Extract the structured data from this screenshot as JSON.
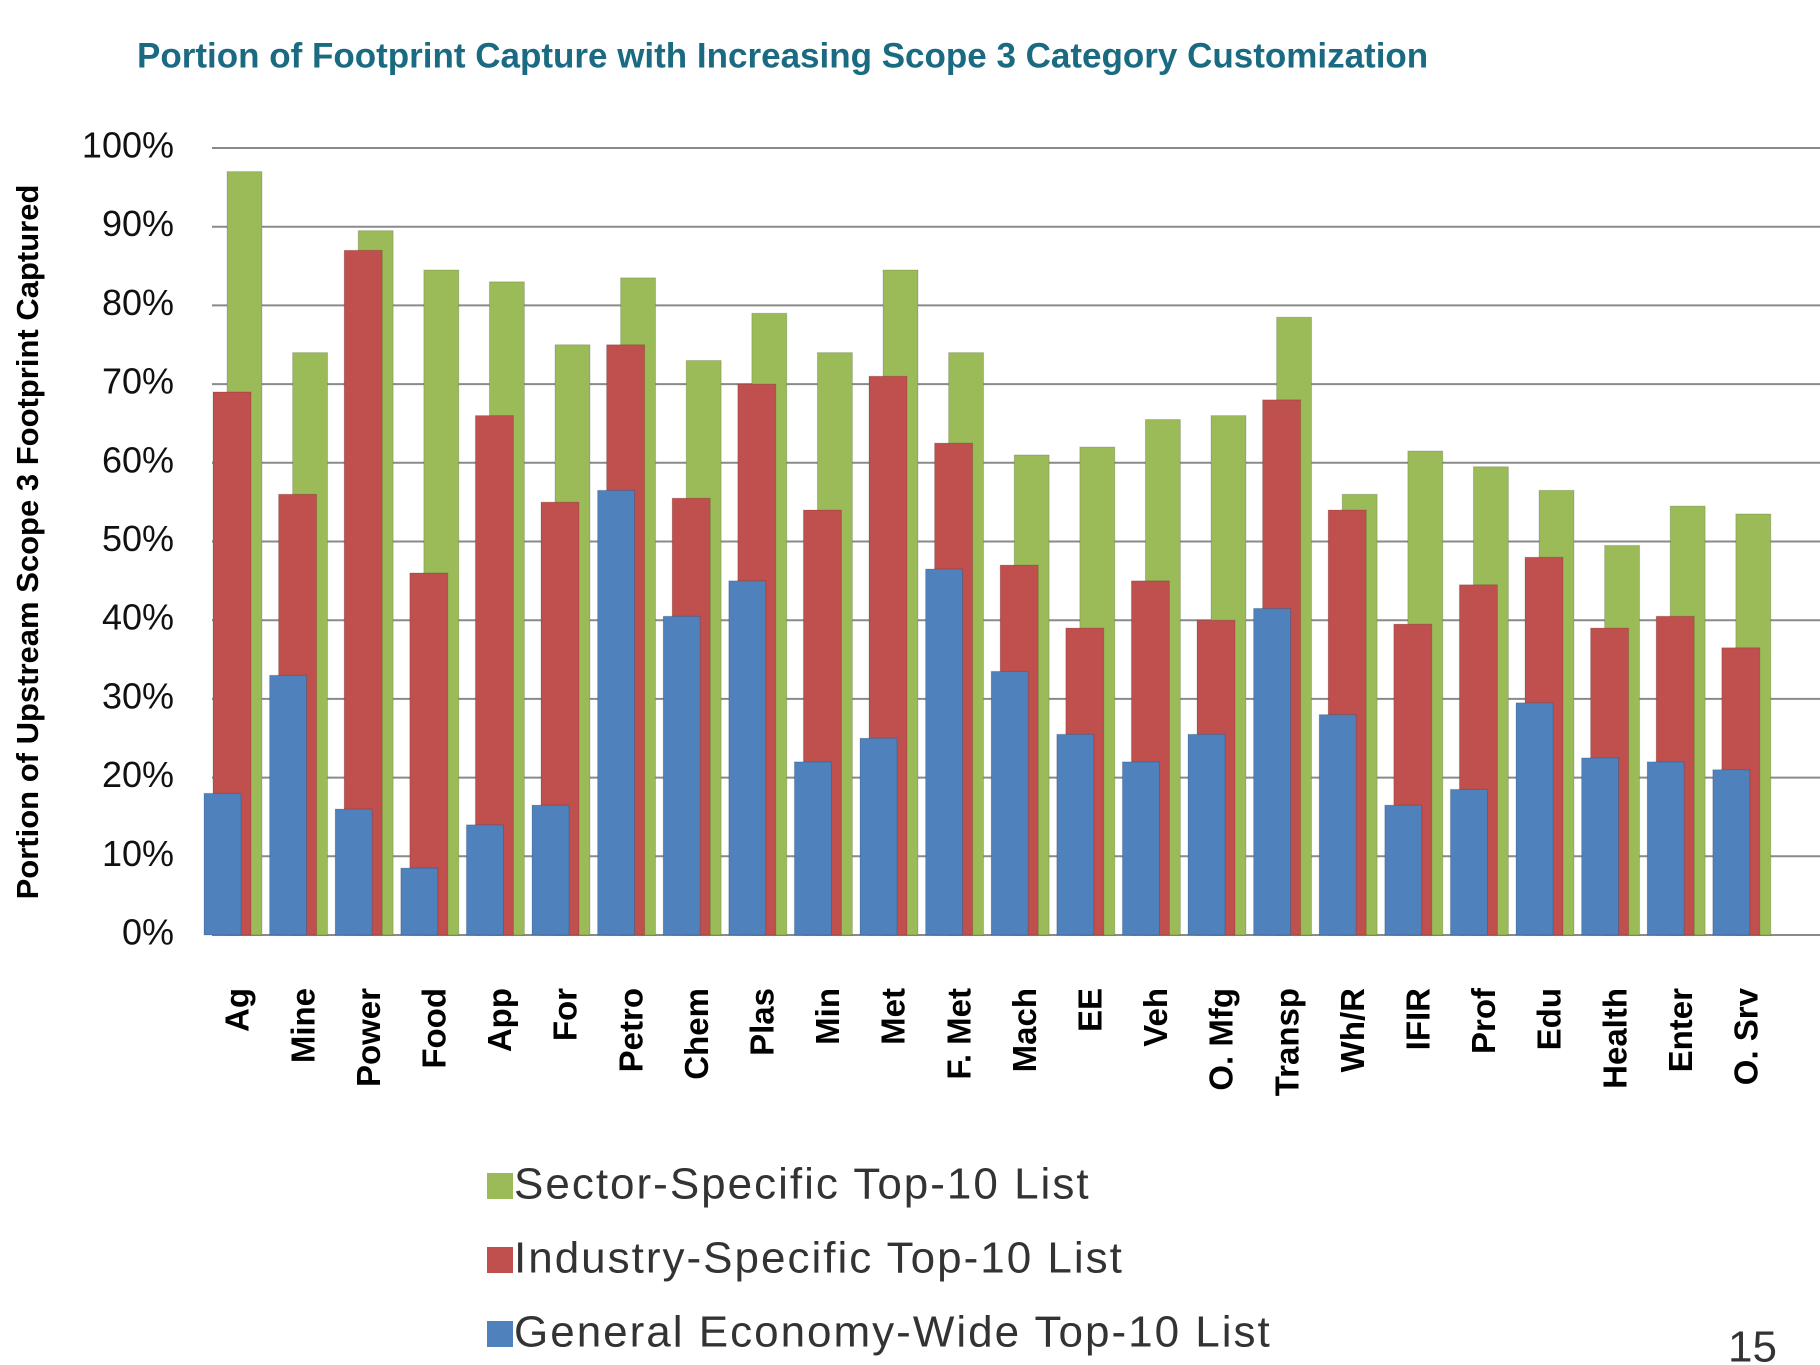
{
  "chart_data": {
    "type": "bar",
    "title": "Portion of Footprint Capture with Increasing Scope 3 Category Customization",
    "y_label": "Portion of Upstream Scope 3 Footprint Captured",
    "page_number": "15",
    "categories": [
      "Ag",
      "Mine",
      "Power",
      "Food",
      "App",
      "For",
      "Petro",
      "Chem",
      "Plas",
      "Min",
      "Met",
      "F. Met",
      "Mach",
      "EE",
      "Veh",
      "O. Mfg",
      "Transp",
      "Wh/R",
      "IFIR",
      "Prof",
      "Edu",
      "Health",
      "Enter",
      "O. Srv"
    ],
    "series": [
      {
        "name": "Sector-Specific Top-10 List",
        "color": "#9bbb59",
        "values": [
          97,
          74,
          89.5,
          84.5,
          83,
          75,
          83.5,
          73,
          79,
          74,
          84.5,
          74,
          61,
          62,
          65.5,
          66,
          78.5,
          56,
          61.5,
          59.5,
          56.5,
          49.5,
          54.5,
          53.5
        ]
      },
      {
        "name": "Industry-Specific Top-10 List",
        "color": "#c0504d",
        "values": [
          69,
          56,
          87,
          46,
          66,
          55,
          75,
          55.5,
          70,
          54,
          71,
          62.5,
          47,
          39,
          45,
          40,
          68,
          54,
          39.5,
          44.5,
          48,
          39,
          40.5,
          36.5
        ]
      },
      {
        "name": "General Economy-Wide Top-10 List",
        "color": "#4f81bd",
        "values": [
          18,
          33,
          16,
          8.5,
          14,
          16.5,
          56.5,
          40.5,
          45,
          22,
          25,
          46.5,
          33.5,
          25.5,
          22,
          25.5,
          41.5,
          28,
          16.5,
          18.5,
          29.5,
          22.5,
          22,
          21
        ]
      }
    ],
    "ylim": [
      0,
      100
    ],
    "yticks": [
      {
        "value": 0,
        "label": "0%"
      },
      {
        "value": 10,
        "label": "10%"
      },
      {
        "value": 20,
        "label": "20%"
      },
      {
        "value": 30,
        "label": "30%"
      },
      {
        "value": 40,
        "label": "40%"
      },
      {
        "value": 50,
        "label": "50%"
      },
      {
        "value": 60,
        "label": "60%"
      },
      {
        "value": 70,
        "label": "70%"
      },
      {
        "value": 80,
        "label": "80%"
      },
      {
        "value": 90,
        "label": "90%"
      },
      {
        "value": 100,
        "label": "100%"
      }
    ],
    "grid": true
  }
}
